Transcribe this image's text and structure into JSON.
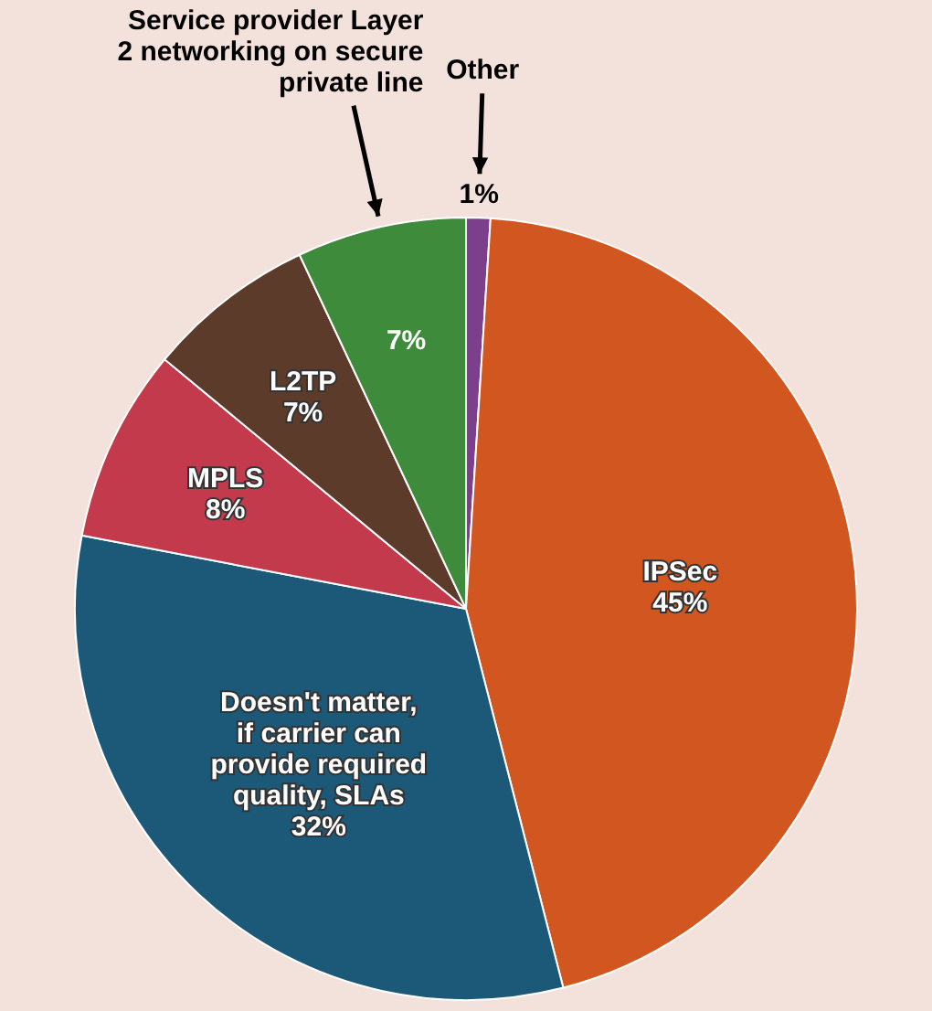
{
  "chart_data": {
    "type": "pie",
    "categories": [
      "Other",
      "IPSec",
      "Doesn't matter, if carrier can provide required quality, SLAs",
      "MPLS",
      "L2TP",
      "Service provider Layer 2 networking on secure private line"
    ],
    "values": [
      1,
      45,
      32,
      8,
      7,
      7
    ],
    "colors": [
      "#7b3f8c",
      "#d2561f",
      "#1c5878",
      "#c23a4c",
      "#5c3b2b",
      "#3f8b3c"
    ],
    "value_labels": [
      "1%",
      "45%",
      "32%",
      "8%",
      "7%",
      "7%"
    ]
  }
}
